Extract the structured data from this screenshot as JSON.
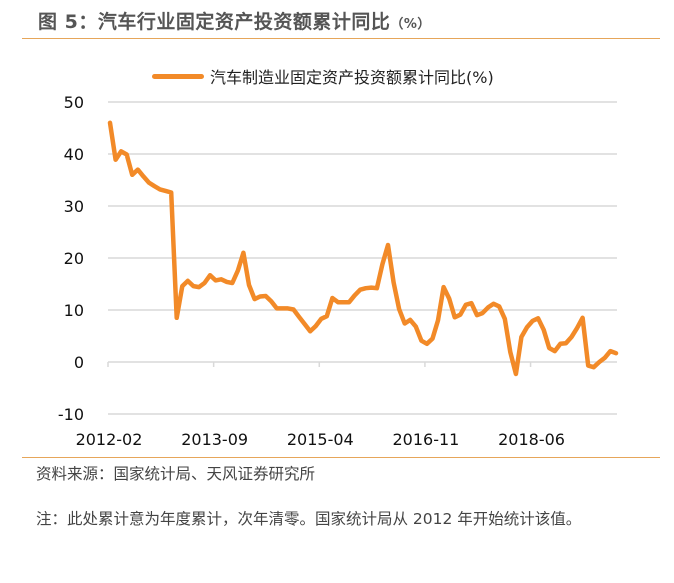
{
  "figure": {
    "title": "图 5：汽车行业固定资产投资额累计同比",
    "title_unit": "（%）",
    "source": "资料来源：国家统计局、天风证券研究所",
    "note": "注：此处累计意为年度累计，次年清零。国家统计局从 2012 年开始统计该值。"
  },
  "colors": {
    "series": "#f28a28",
    "grid": "#d9d9d9",
    "rule": "#e6a65a",
    "title": "#555555"
  },
  "chart_data": {
    "type": "line",
    "title": "汽车行业固定资产投资额累计同比（%）",
    "xlabel": "",
    "ylabel": "",
    "ylim": [
      -10,
      50
    ],
    "yticks": [
      50,
      40,
      30,
      20,
      10,
      0,
      -10
    ],
    "xtick_labels": [
      "2012-02",
      "2013-09",
      "2015-04",
      "2016-11",
      "2018-06"
    ],
    "xtick_indices": [
      0,
      19,
      38,
      57,
      76
    ],
    "grid": true,
    "legend_position": "top",
    "start_month": "2012-02",
    "end_month": "2019-09",
    "series": [
      {
        "name": "汽车制造业固定资产投资额累计同比(%)",
        "values": [
          46.0,
          38.9,
          40.5,
          39.9,
          36.0,
          37.0,
          35.7,
          34.5,
          33.8,
          33.2,
          32.9,
          32.6,
          8.5,
          14.6,
          15.6,
          14.6,
          14.4,
          15.2,
          16.7,
          15.7,
          15.9,
          15.4,
          15.2,
          17.6,
          21.0,
          14.8,
          12.1,
          12.6,
          12.7,
          11.7,
          10.3,
          10.3,
          10.3,
          10.1,
          8.7,
          7.3,
          5.9,
          6.9,
          8.3,
          8.8,
          12.3,
          11.5,
          11.5,
          11.5,
          12.8,
          13.9,
          14.2,
          14.3,
          14.2,
          18.8,
          22.5,
          15.3,
          10.2,
          7.4,
          8.1,
          6.8,
          4.1,
          3.5,
          4.5,
          8.0,
          14.4,
          12.2,
          8.6,
          9.1,
          11.0,
          11.3,
          9.0,
          9.4,
          10.5,
          11.2,
          10.7,
          8.3,
          1.9,
          -2.3,
          4.8,
          6.7,
          7.9,
          8.4,
          6.2,
          2.7,
          2.1,
          3.5,
          3.6,
          4.8,
          6.5,
          8.5,
          -0.7,
          -1.0,
          0.0,
          0.8,
          2.1,
          1.7
        ]
      }
    ]
  }
}
